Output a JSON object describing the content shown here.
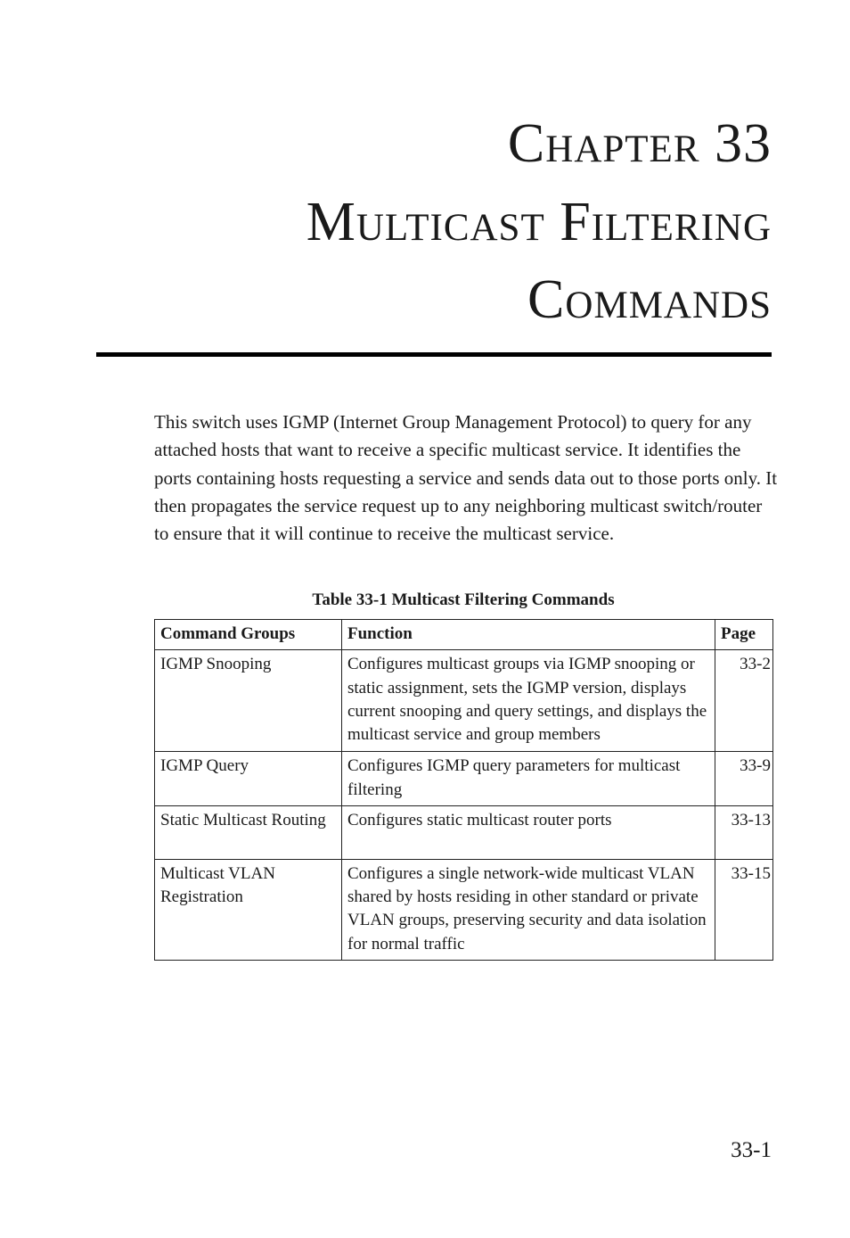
{
  "chapter": {
    "lines": [
      "Chapter 33",
      "Multicast Filtering",
      "Commands"
    ]
  },
  "intro": "This switch uses IGMP (Internet Group Management Protocol) to query for any attached hosts that want to receive a specific multicast service. It identifies the ports containing hosts requesting a service and sends data out to those ports only. It then propagates the service request up to any neighboring multicast switch/router to ensure that it will continue to receive the multicast service.",
  "table": {
    "caption": "Table 33-1  Multicast Filtering Commands",
    "headers": [
      "Command Groups",
      "Function",
      "Page"
    ],
    "rows": [
      [
        "IGMP Snooping",
        "Configures multicast groups via IGMP snooping or static assignment, sets the IGMP version, displays current snooping and query settings, and displays the multicast service and group members",
        "33-2"
      ],
      [
        "IGMP Query",
        "Configures IGMP query parameters for multicast filtering",
        "33-9"
      ],
      [
        "Static Multicast Routing",
        "Configures static multicast router ports",
        "33-13"
      ],
      [
        "Multicast VLAN Registration",
        "Configures a single network-wide multicast VLAN shared by hosts residing in other standard or private VLAN groups, preserving security and data isolation for normal traffic",
        "33-15"
      ]
    ]
  },
  "page_number": "33-1"
}
